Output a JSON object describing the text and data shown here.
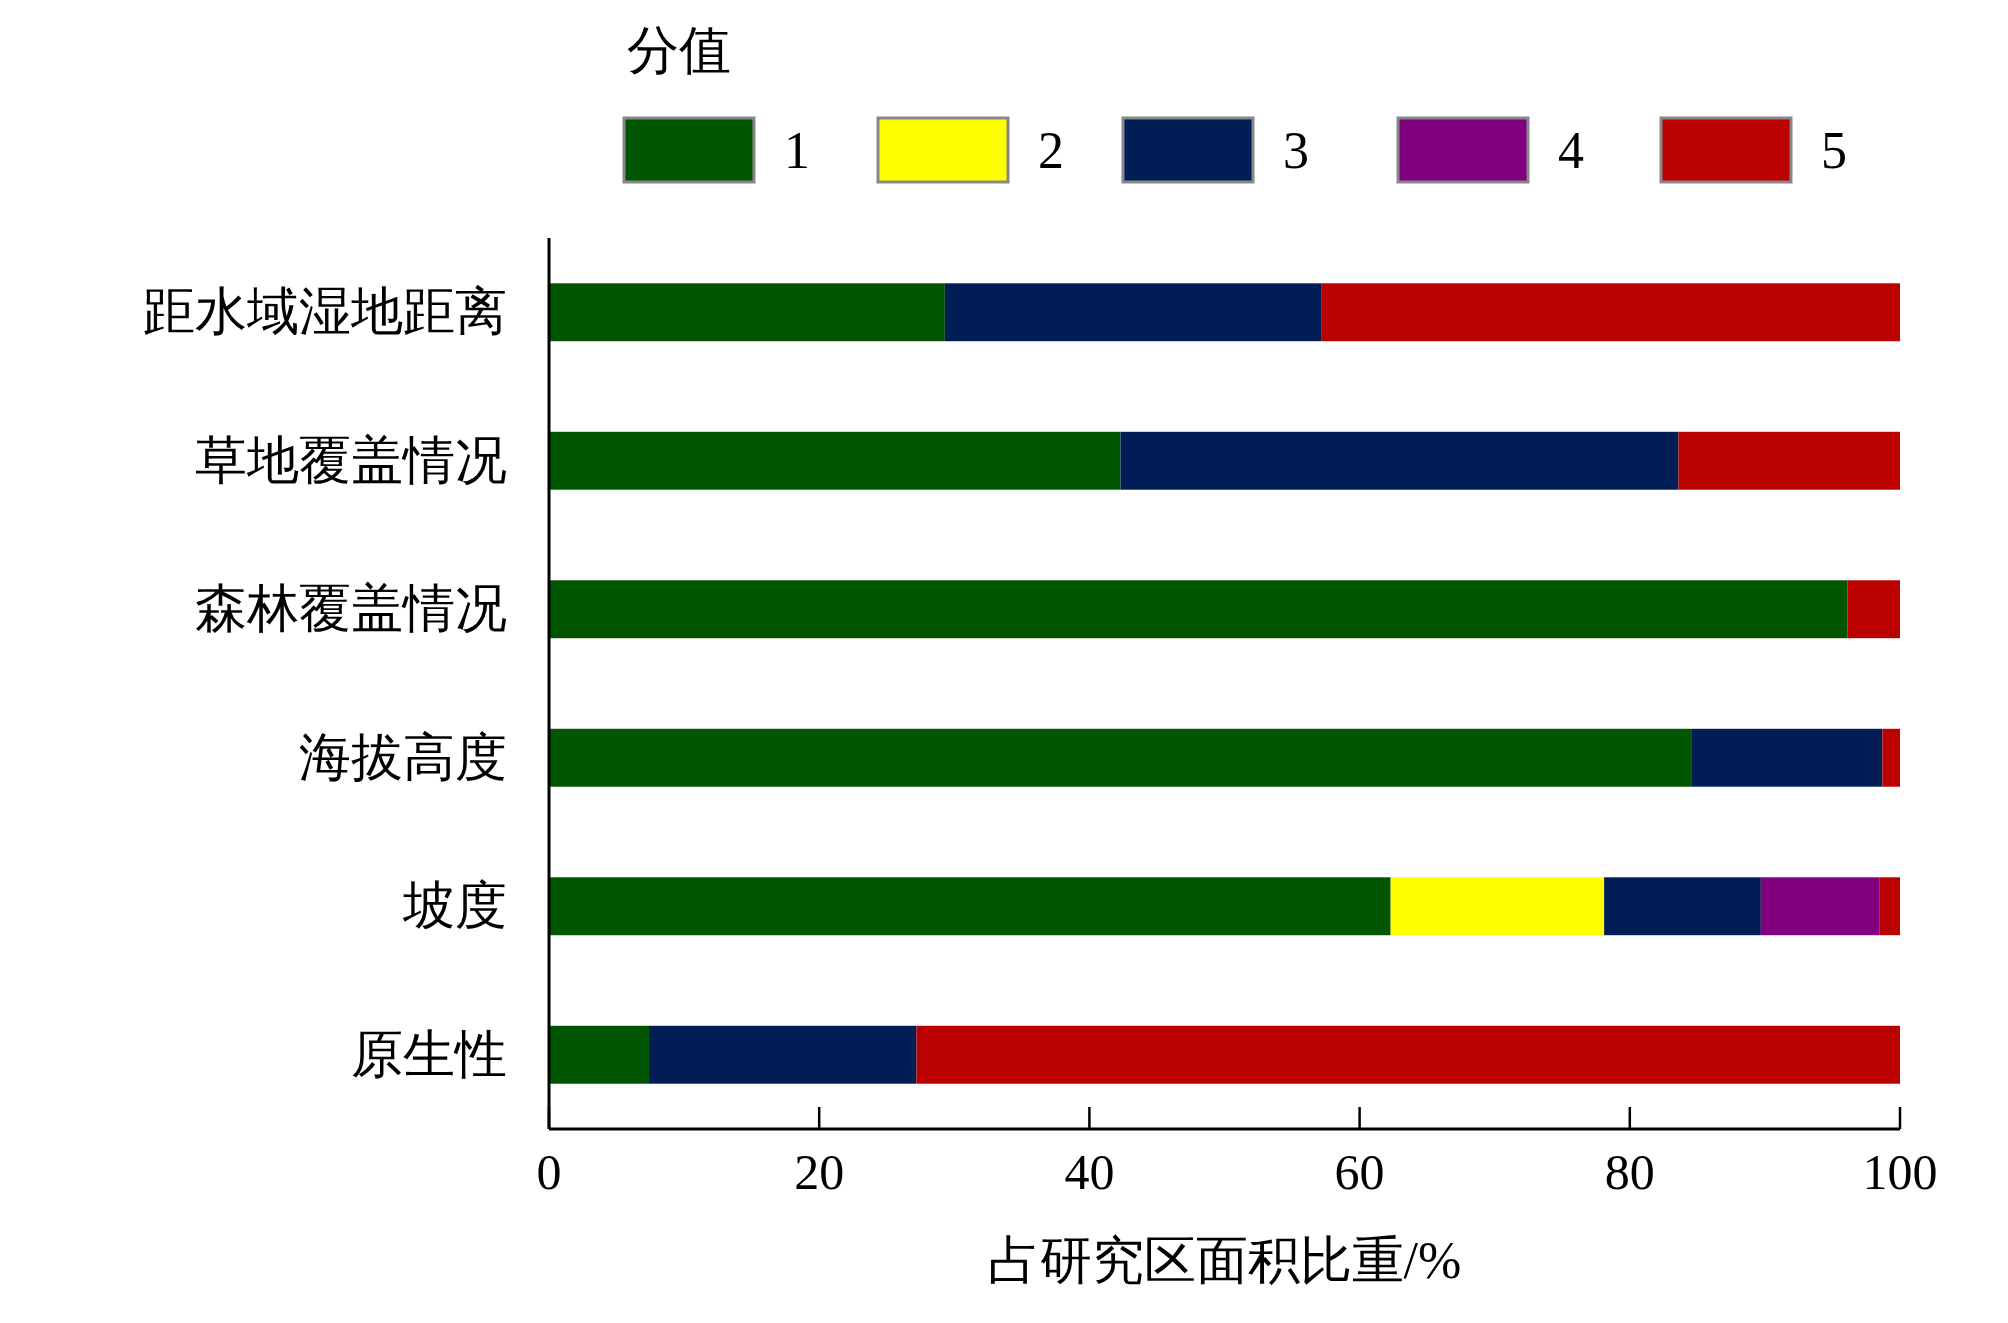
{
  "chart_data": {
    "type": "bar",
    "orientation": "horizontal",
    "stacked": true,
    "xlabel": "占研究区面积比重/%",
    "legend_title": "分值",
    "legend": "top",
    "categories": [
      "距水域湿地距离",
      "草地覆盖情况",
      "森林覆盖情况",
      "海拔高度",
      "坡度",
      "原生性"
    ],
    "series": [
      {
        "name": "1",
        "color": "#005500",
        "values": [
          29.3,
          42.3,
          96.1,
          84.6,
          62.3,
          7.4
        ]
      },
      {
        "name": "2",
        "color": "#ffff00",
        "values": [
          0,
          0,
          0,
          0,
          15.8,
          0
        ]
      },
      {
        "name": "3",
        "color": "#001e55",
        "values": [
          27.9,
          41.3,
          0,
          14.1,
          11.6,
          19.8
        ]
      },
      {
        "name": "4",
        "color": "#800080",
        "values": [
          0,
          0,
          0,
          0,
          8.8,
          0
        ]
      },
      {
        "name": "5",
        "color": "#bb0000",
        "values": [
          42.8,
          16.4,
          3.9,
          1.3,
          1.5,
          72.8
        ]
      }
    ],
    "xlim": [
      0,
      100
    ],
    "xticks": [
      0,
      20,
      40,
      60,
      80,
      100
    ]
  }
}
